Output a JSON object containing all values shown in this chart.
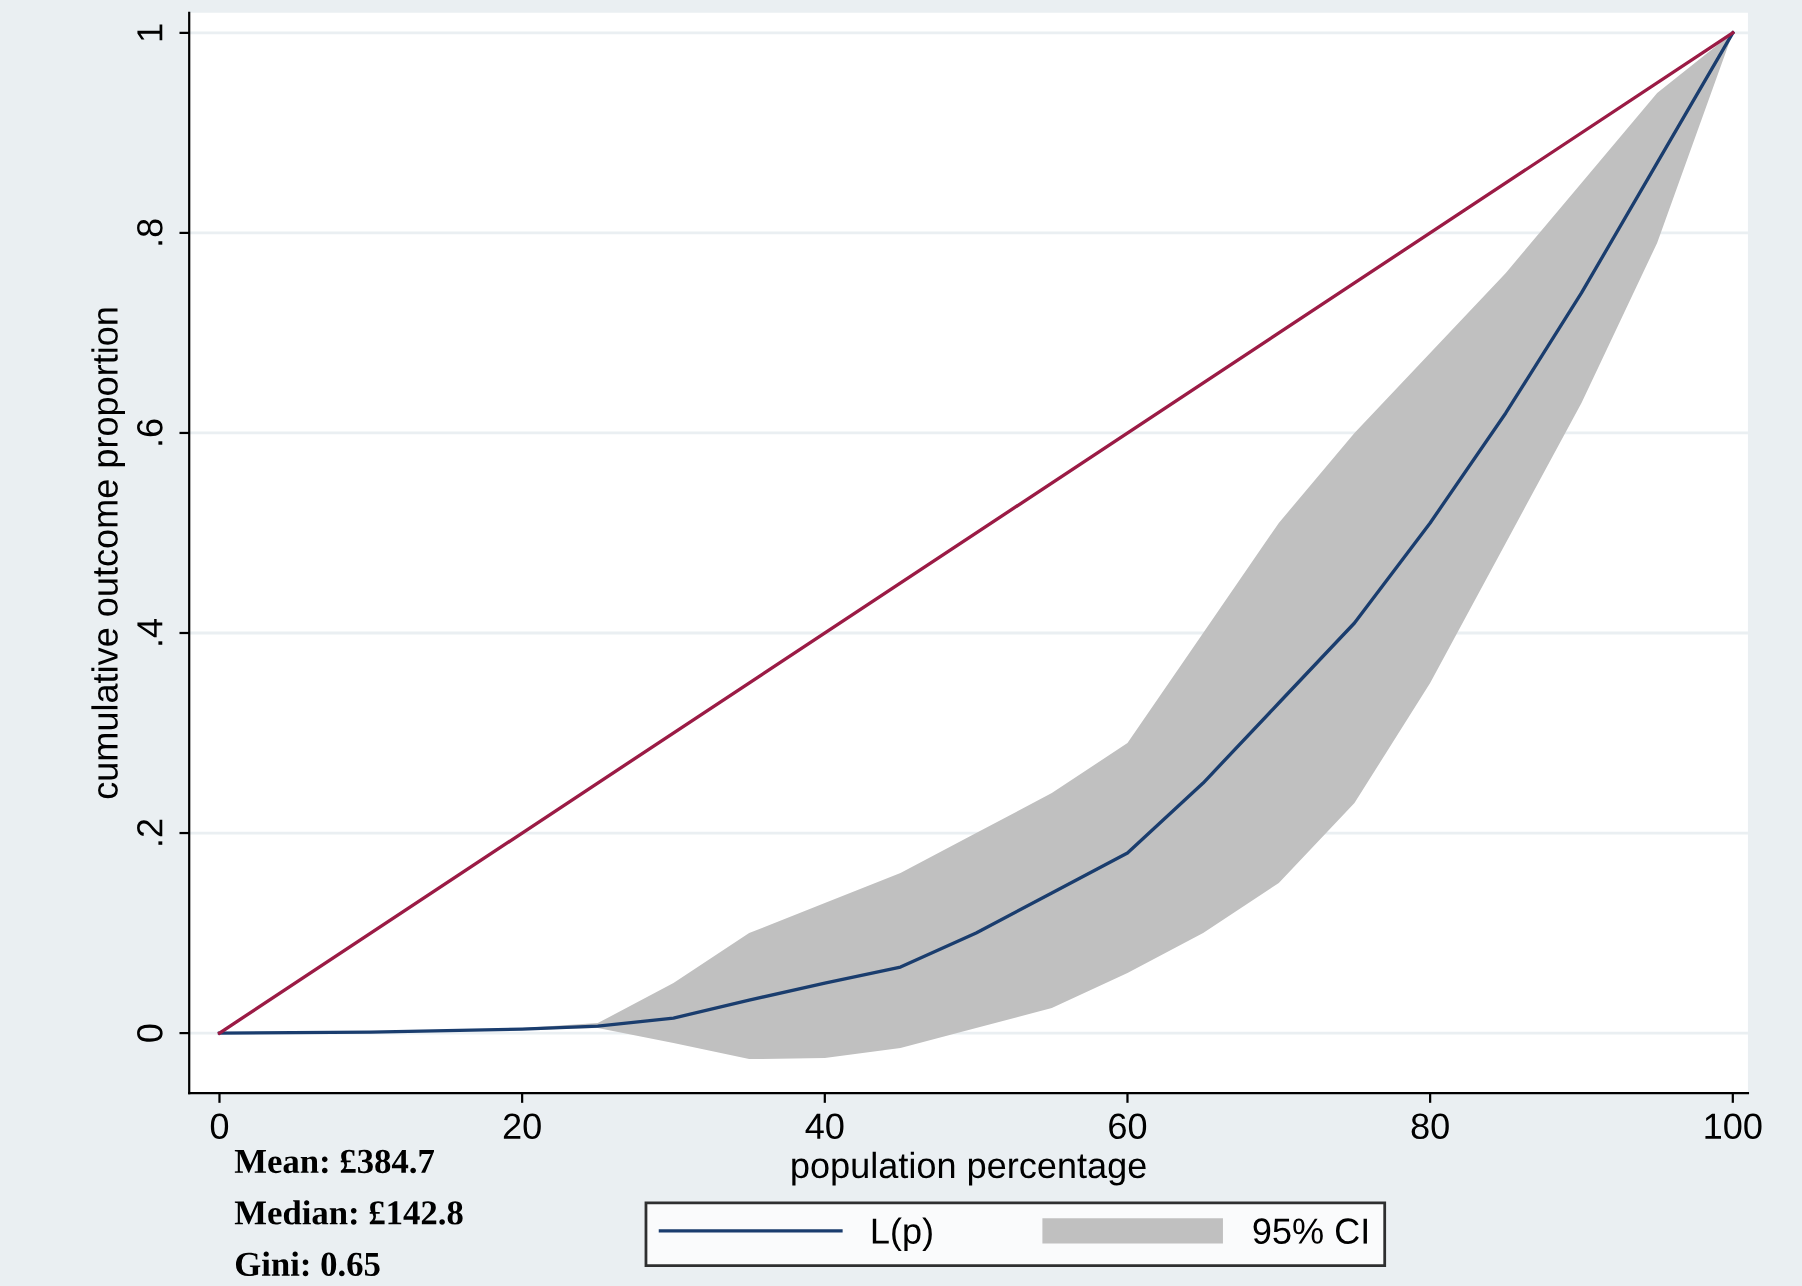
{
  "chart_data": {
    "type": "line",
    "xlabel": "population percentage",
    "ylabel": "cumulative outcome proportion",
    "xlim": [
      -2,
      101
    ],
    "ylim": [
      -0.06,
      1.02
    ],
    "xticks": [
      0,
      20,
      40,
      60,
      80,
      100
    ],
    "yticks": [
      {
        "value": 0,
        "label": "0"
      },
      {
        "value": 0.2,
        "label": ".2"
      },
      {
        "value": 0.4,
        "label": ".4"
      },
      {
        "value": 0.6,
        "label": ".6"
      },
      {
        "value": 0.8,
        "label": ".8"
      },
      {
        "value": 1,
        "label": "1"
      }
    ],
    "grid": "y",
    "legend": "bottom",
    "series": [
      {
        "name": "L(p)",
        "color": "#1a3d6e",
        "x": [
          0,
          10,
          20,
          25,
          30,
          35,
          40,
          45,
          50,
          55,
          60,
          65,
          70,
          75,
          80,
          85,
          90,
          95,
          100
        ],
        "values": [
          0,
          0.001,
          0.004,
          0.007,
          0.015,
          0.033,
          0.05,
          0.066,
          0.1,
          0.14,
          0.18,
          0.25,
          0.33,
          0.41,
          0.51,
          0.62,
          0.74,
          0.87,
          1
        ],
        "lower": [
          0,
          0.001,
          0.003,
          0.005,
          -0.01,
          -0.026,
          -0.025,
          -0.015,
          0.005,
          0.025,
          0.06,
          0.1,
          0.15,
          0.23,
          0.35,
          0.49,
          0.63,
          0.79,
          1
        ],
        "upper": [
          0,
          0.001,
          0.005,
          0.01,
          0.05,
          0.1,
          0.13,
          0.16,
          0.2,
          0.24,
          0.29,
          0.4,
          0.51,
          0.6,
          0.68,
          0.76,
          0.85,
          0.94,
          1
        ]
      },
      {
        "type": "line",
        "color": "#9b1b45",
        "x": [
          0,
          100
        ],
        "values": [
          0,
          1
        ]
      }
    ],
    "annotations": [
      "Mean: £384.7",
      "Median: £142.8",
      "Gini: 0.65",
      "95% CI"
    ]
  }
}
